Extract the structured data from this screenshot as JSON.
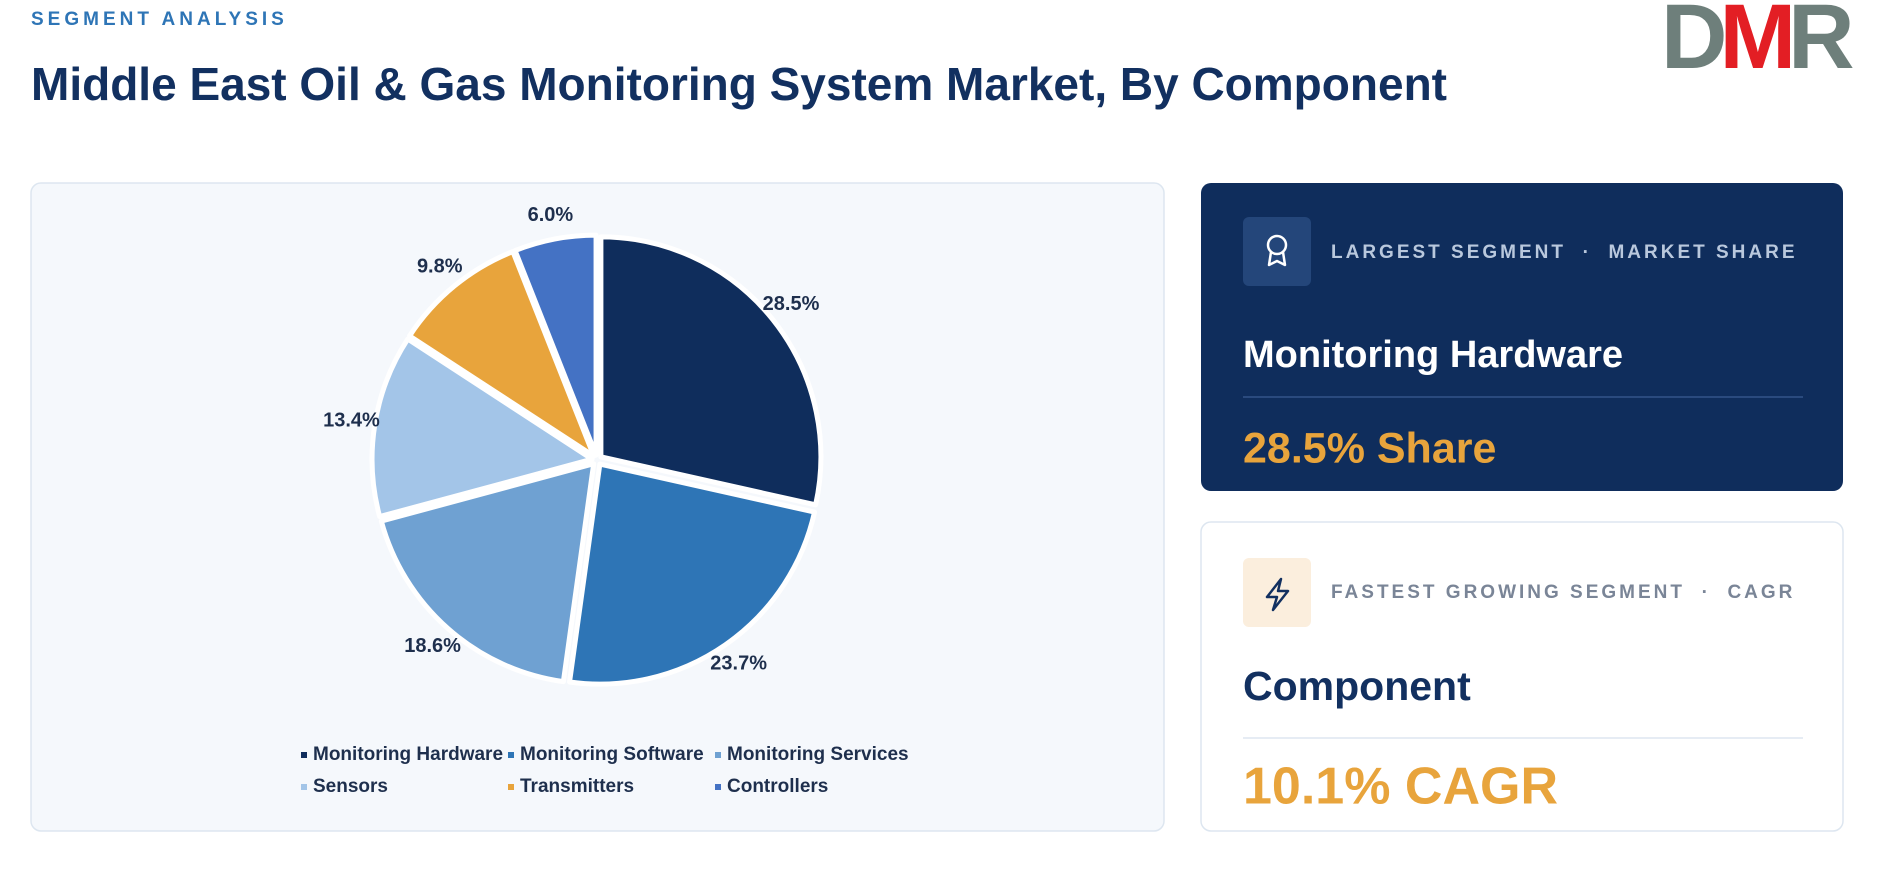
{
  "eyebrow": "SEGMENT ANALYSIS",
  "title": "Middle East Oil & Gas Monitoring System Market, By Component",
  "logo": [
    "D",
    "M",
    "R"
  ],
  "chart_data": {
    "type": "pie",
    "categories": [
      "Monitoring Hardware",
      "Monitoring Software",
      "Monitoring Services",
      "Sensors",
      "Transmitters",
      "Controllers"
    ],
    "values": [
      28.5,
      23.7,
      18.6,
      13.4,
      9.8,
      6.0
    ],
    "value_labels": [
      "28.5%",
      "23.7%",
      "18.6%",
      "13.4%",
      "9.8%",
      "6.0%"
    ],
    "colors": [
      "#0f2d5c",
      "#2e75b6",
      "#6fa1d2",
      "#a3c5e8",
      "#e8a43c",
      "#4472c4"
    ]
  },
  "cards": [
    {
      "label": "LARGEST SEGMENT  ·  MARKET SHARE",
      "name": "Monitoring Hardware",
      "value": "28.5% Share"
    },
    {
      "label": "FASTEST GROWING SEGMENT  ·  CAGR",
      "name": "Component",
      "value": "10.1% CAGR"
    }
  ]
}
